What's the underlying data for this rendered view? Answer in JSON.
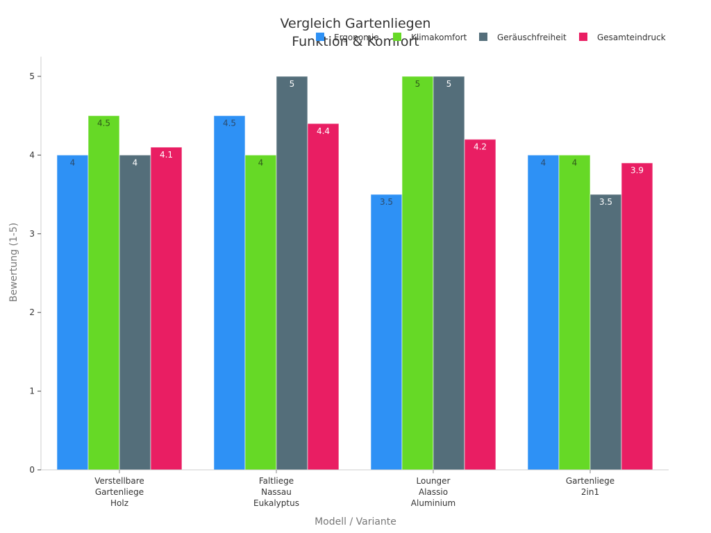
{
  "chart_data": {
    "type": "bar",
    "title": [
      "Vergleich Gartenliegen",
      "Funktion & Komfort"
    ],
    "xlabel": "Modell / Variante",
    "ylabel": "Bewertung (1-5)",
    "ylim": [
      0,
      5.25
    ],
    "yticks": [
      0,
      1,
      2,
      3,
      4,
      5
    ],
    "grid": false,
    "legend_position": "top-right",
    "categories": [
      [
        "Verstellbare",
        "Gartenliege",
        "Holz"
      ],
      [
        "Faltliege",
        "Nassau",
        "Eukalyptus"
      ],
      [
        "Lounger",
        "Alassio",
        "Aluminium"
      ],
      [
        "Gartenliege",
        "2in1"
      ]
    ],
    "series": [
      {
        "name": "Ergonomie",
        "color": "#2E91F5",
        "label_color": "#2B4A6B",
        "values": [
          4,
          4.5,
          3.5,
          4
        ]
      },
      {
        "name": "Klimakomfort",
        "color": "#66D926",
        "label_color": "#2F5A1A",
        "values": [
          4.5,
          4,
          5,
          4
        ]
      },
      {
        "name": "Geräuschfreiheit",
        "color": "#546E7A",
        "label_color": "#FFFFFF",
        "values": [
          4,
          5,
          5,
          3.5
        ]
      },
      {
        "name": "Gesamteindruck",
        "color": "#E91E63",
        "label_color": "#FFFFFF",
        "values": [
          4.1,
          4.4,
          4.2,
          3.9
        ]
      }
    ]
  }
}
